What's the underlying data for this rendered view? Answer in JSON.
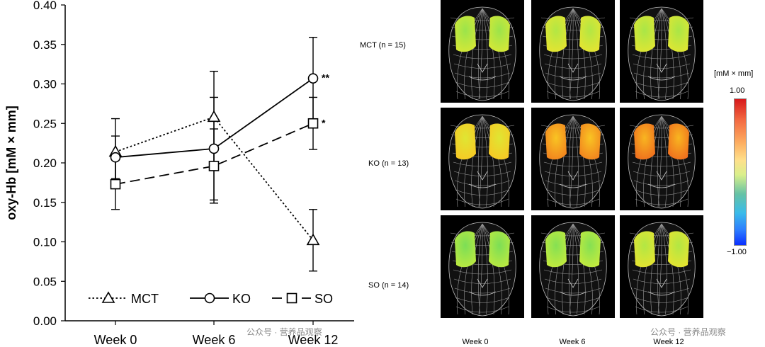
{
  "chart_data": {
    "type": "line",
    "ylabel": "oxy-Hb [mM × mm]",
    "categories": [
      "Week 0",
      "Week 6",
      "Week 12"
    ],
    "ylim": [
      0.0,
      0.4
    ],
    "yticks": [
      "0.00",
      "0.05",
      "0.10",
      "0.15",
      "0.20",
      "0.25",
      "0.30",
      "0.35",
      "0.40"
    ],
    "series": [
      {
        "name": "MCT",
        "marker": "triangle",
        "dash": "dotted",
        "values": [
          0.214,
          0.258,
          0.102
        ],
        "err": [
          0.042,
          0.058,
          0.039
        ],
        "sig": [
          "",
          "",
          ""
        ]
      },
      {
        "name": "KO",
        "marker": "circle",
        "dash": "solid",
        "values": [
          0.207,
          0.218,
          0.307
        ],
        "err": [
          0.027,
          0.065,
          0.052
        ],
        "sig": [
          "",
          "",
          "**"
        ]
      },
      {
        "name": "SO",
        "marker": "square",
        "dash": "dashed",
        "values": [
          0.173,
          0.196,
          0.25
        ],
        "err": [
          0.032,
          0.047,
          0.033
        ],
        "sig": [
          "",
          "",
          "*"
        ]
      }
    ]
  },
  "topo": {
    "groups": [
      "MCT (n = 15)",
      "KO (n = 13)",
      "SO (n = 14)"
    ],
    "weeks": [
      "Week 0",
      "Week 6",
      "Week 12"
    ],
    "unit": "[mM × mm]",
    "scale_max": "1.00",
    "scale_min": "−1.00",
    "levels": [
      [
        0.35,
        0.4,
        0.38
      ],
      [
        0.52,
        0.68,
        0.72
      ],
      [
        0.28,
        0.3,
        0.4
      ]
    ]
  },
  "watermark": "公众号 · 营养品观察"
}
